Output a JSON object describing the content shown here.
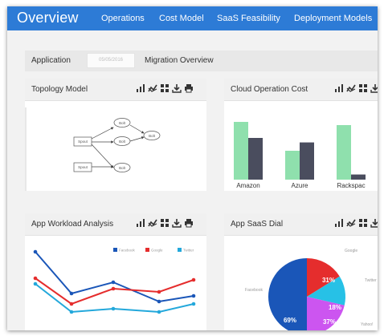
{
  "header": {
    "title": "Overview",
    "nav": [
      "Operations",
      "Cost Model",
      "SaaS Feasibility",
      "Deployment Models"
    ]
  },
  "application_bar": {
    "label": "Application",
    "date_value": "05/05/2016",
    "view": "Migration Overview"
  },
  "cards": {
    "topology": {
      "title": "Topology Model",
      "nodes": {
        "spout1": "Spout",
        "spout2": "Spout",
        "bolt1": "Bolt",
        "bolt2": "Bolt",
        "bolt3": "Bolt",
        "bolt4": "Bolt",
        "bolt5": "Bolt"
      }
    },
    "cloud_cost": {
      "title": "Cloud Operation Cost"
    },
    "workload": {
      "title": "App Workload Analysis"
    },
    "saas_dial": {
      "title": "App SaaS Dial"
    }
  },
  "icons": [
    "bar-chart-icon",
    "line-chart-icon",
    "grid-icon",
    "download-icon",
    "print-icon"
  ],
  "colors": {
    "nav_bar": "#2d7bd6",
    "facebook": "#1a56b8",
    "google": "#e52d2d",
    "twitter": "#23a8db",
    "yahoo": "#cc55f0",
    "cost_green": "#8fe0ad",
    "cost_dark": "#4a4d5e",
    "pie_twitter": "#27c1e6"
  },
  "chart_data": [
    {
      "type": "bar",
      "title": "Cloud Operation Cost",
      "categories": [
        "Amazon",
        "Azure",
        "Rackspac"
      ],
      "series": [
        {
          "values": [
            90,
            45,
            85
          ]
        },
        {
          "values": [
            65,
            58,
            8
          ]
        }
      ]
    },
    {
      "type": "line",
      "title": "App Workload Analysis",
      "legend": [
        "Facebook",
        "Google",
        "Twitter"
      ],
      "x": [
        1,
        2,
        3,
        4,
        5
      ],
      "series": [
        {
          "name": "Facebook",
          "values": [
            90,
            38,
            52,
            28,
            35
          ]
        },
        {
          "name": "Google",
          "values": [
            57,
            25,
            44,
            40,
            55
          ]
        },
        {
          "name": "Twitter",
          "values": [
            50,
            15,
            19,
            15,
            25
          ]
        }
      ],
      "ylim": [
        0,
        100
      ]
    },
    {
      "type": "pie",
      "title": "App SaaS Dial",
      "slices": [
        {
          "label": "Facebook",
          "value": 69,
          "text": "69%"
        },
        {
          "label": "Google",
          "value": 31,
          "text": "31%"
        },
        {
          "label": "Twitter",
          "value": 18,
          "text": "18%"
        },
        {
          "label": "Yahoo!",
          "value": 37,
          "text": "37%"
        }
      ]
    }
  ]
}
